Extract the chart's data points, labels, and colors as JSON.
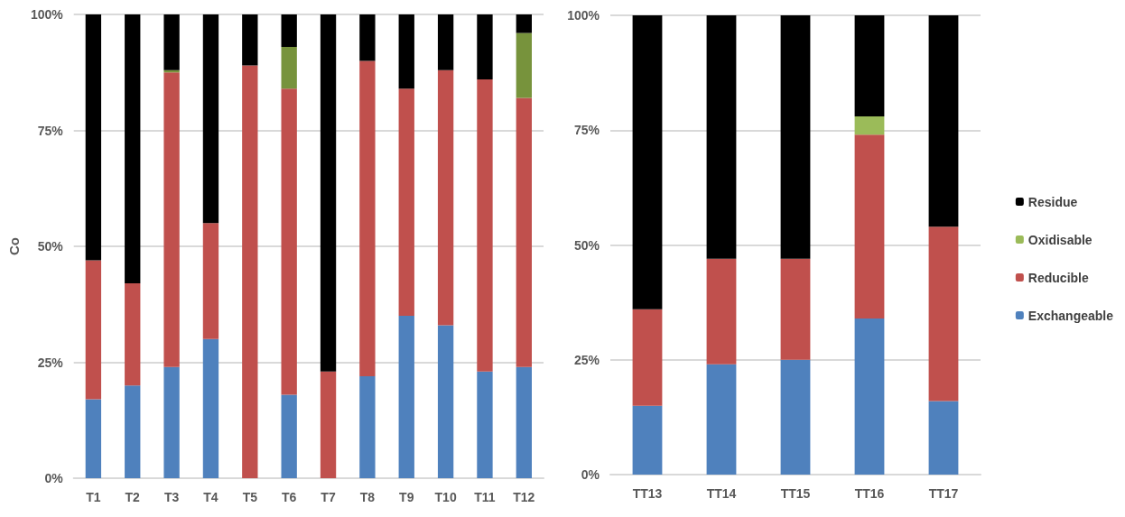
{
  "chart_data": [
    {
      "type": "bar",
      "stacked": true,
      "ylabel": "Co",
      "categories": [
        "T1",
        "T2",
        "T3",
        "T4",
        "T5",
        "T6",
        "T7",
        "T8",
        "T9",
        "T10",
        "T11",
        "T12"
      ],
      "series": [
        {
          "color": "#4f81bd",
          "values": [
            17,
            20,
            24,
            30,
            0,
            18,
            0,
            22,
            35,
            33,
            23,
            24
          ]
        },
        {
          "color": "#c0504d",
          "values": [
            30,
            22,
            63.5,
            25,
            89,
            66,
            23,
            68,
            49,
            55,
            63,
            58
          ]
        },
        {
          "color": "#77933c",
          "values": [
            0,
            0,
            0.5,
            0,
            0,
            9,
            0,
            0,
            0,
            0,
            0,
            14
          ]
        },
        {
          "color": "#000000",
          "values": [
            53,
            58,
            12,
            45,
            11,
            7,
            77,
            10,
            16,
            12,
            14,
            4
          ]
        }
      ],
      "ylim": [
        0,
        100
      ],
      "yticks": [
        {
          "value": 0,
          "label": "0%"
        },
        {
          "value": 25,
          "label": "25%"
        },
        {
          "value": 50,
          "label": "50%"
        },
        {
          "value": 75,
          "label": "75%"
        },
        {
          "value": 100,
          "label": "100%"
        }
      ],
      "grid": "y",
      "legend": false
    },
    {
      "type": "bar",
      "stacked": true,
      "categories": [
        "TT13",
        "TT14",
        "TT15",
        "TT16",
        "TT17"
      ],
      "series": [
        {
          "name": "Exchangeable",
          "color": "#4f81bd",
          "values": [
            15,
            24,
            25,
            34,
            16
          ]
        },
        {
          "name": "Reducible",
          "color": "#c0504d",
          "values": [
            21,
            23,
            22,
            40,
            38
          ]
        },
        {
          "name": "Oxidisable",
          "color": "#9bbb59",
          "values": [
            0,
            0,
            0,
            4,
            0
          ]
        },
        {
          "name": "Residue",
          "color": "#000000",
          "values": [
            64,
            53,
            53,
            22,
            46
          ]
        }
      ],
      "ylim": [
        0,
        100
      ],
      "yticks": [
        {
          "value": 0,
          "label": "0%"
        },
        {
          "value": 25,
          "label": "25%"
        },
        {
          "value": 50,
          "label": "50%"
        },
        {
          "value": 75,
          "label": "75%"
        },
        {
          "value": 100,
          "label": "100%"
        }
      ],
      "grid": "y",
      "legend": "right"
    }
  ]
}
